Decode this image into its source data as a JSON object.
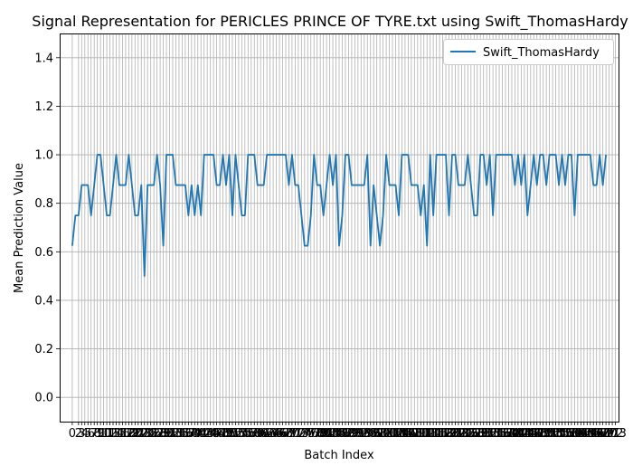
{
  "chart_data": {
    "type": "line",
    "title": "Signal Representation for PERICLES PRINCE OF TYRE.txt using Swift_ThomasHardy",
    "xlabel": "Batch Index",
    "ylabel": "Mean Prediction Value",
    "xlim": [
      -4,
      174
    ],
    "ylim": [
      -0.1,
      1.5
    ],
    "yticks": [
      0.0,
      0.2,
      0.4,
      0.6,
      0.8,
      1.0,
      1.2,
      1.4
    ],
    "grid": true,
    "legend": "top-right",
    "series": [
      {
        "name": "Swift_ThomasHardy",
        "color": "#1f77b4",
        "x": [
          0,
          1,
          2,
          3,
          4,
          5,
          6,
          7,
          8,
          9,
          10,
          11,
          12,
          13,
          14,
          15,
          16,
          17,
          18,
          19,
          20,
          21,
          22,
          23,
          24,
          25,
          26,
          27,
          28,
          29,
          30,
          31,
          32,
          33,
          34,
          35,
          36,
          37,
          38,
          39,
          40,
          41,
          42,
          43,
          44,
          45,
          46,
          47,
          48,
          49,
          50,
          51,
          52,
          53,
          54,
          55,
          56,
          57,
          58,
          59,
          60,
          61,
          62,
          63,
          64,
          65,
          66,
          67,
          68,
          69,
          70,
          71,
          72,
          73,
          74,
          75,
          76,
          77,
          78,
          79,
          80,
          81,
          82,
          83,
          84,
          85,
          86,
          87,
          88,
          89,
          90,
          91,
          92,
          93,
          94,
          95,
          96,
          97,
          98,
          99,
          100,
          101,
          102,
          103,
          104,
          105,
          106,
          107,
          108,
          109,
          110,
          111,
          112,
          113,
          114,
          115,
          116,
          117,
          118,
          119,
          120,
          121,
          122,
          123,
          124,
          125,
          126,
          127,
          128,
          129,
          130,
          131,
          132,
          133,
          134,
          135,
          136,
          137,
          138,
          139,
          140,
          141,
          142,
          143,
          144,
          145,
          146,
          147,
          148,
          149,
          150,
          151,
          152,
          153,
          154,
          155,
          156,
          157,
          158,
          159,
          160,
          161,
          162,
          163,
          164,
          165,
          166,
          167,
          168,
          169,
          170
        ],
        "values": [
          0.625,
          0.75,
          0.75,
          0.875,
          0.875,
          0.875,
          0.75,
          0.875,
          1.0,
          1.0,
          0.875,
          0.75,
          0.75,
          0.875,
          1.0,
          0.875,
          0.875,
          0.875,
          1.0,
          0.875,
          0.75,
          0.75,
          0.875,
          0.5,
          0.875,
          0.875,
          0.875,
          1.0,
          0.875,
          0.625,
          1.0,
          1.0,
          1.0,
          0.875,
          0.875,
          0.875,
          0.875,
          0.75,
          0.875,
          0.75,
          0.875,
          0.75,
          1.0,
          1.0,
          1.0,
          1.0,
          0.875,
          0.875,
          1.0,
          0.875,
          1.0,
          0.75,
          1.0,
          0.875,
          0.75,
          0.75,
          1.0,
          1.0,
          1.0,
          0.875,
          0.875,
          0.875,
          1.0,
          1.0,
          1.0,
          1.0,
          1.0,
          1.0,
          1.0,
          0.875,
          1.0,
          0.875,
          0.875,
          0.75,
          0.625,
          0.625,
          0.75,
          1.0,
          0.875,
          0.875,
          0.75,
          0.875,
          1.0,
          0.875,
          1.0,
          0.625,
          0.75,
          1.0,
          1.0,
          0.875,
          0.875,
          0.875,
          0.875,
          0.875,
          1.0,
          0.625,
          0.875,
          0.75,
          0.625,
          0.75,
          1.0,
          0.875,
          0.875,
          0.875,
          0.75,
          1.0,
          1.0,
          1.0,
          0.875,
          0.875,
          0.875,
          0.75,
          0.875,
          0.625,
          1.0,
          0.75,
          1.0,
          1.0,
          1.0,
          1.0,
          0.75,
          1.0,
          1.0,
          0.875,
          0.875,
          0.875,
          1.0,
          0.875,
          0.75,
          0.75,
          1.0,
          1.0,
          0.875,
          1.0,
          0.75,
          1.0,
          1.0,
          1.0,
          1.0,
          1.0,
          1.0,
          0.875,
          1.0,
          0.875,
          1.0,
          0.75,
          0.875,
          1.0,
          0.875,
          1.0,
          1.0,
          0.875,
          1.0,
          1.0,
          1.0,
          0.875,
          1.0,
          0.875,
          1.0,
          1.0,
          0.75,
          1.0,
          1.0,
          1.0,
          1.0,
          1.0,
          0.875,
          0.875,
          1.0,
          0.875,
          1.0
        ]
      }
    ],
    "xticks_shown": [
      0,
      2,
      3,
      4,
      5,
      6,
      7,
      8,
      9,
      10,
      11,
      12,
      13,
      14,
      15,
      16,
      17,
      18,
      19,
      20,
      21,
      22,
      23,
      24,
      25,
      26,
      27,
      28,
      29,
      30,
      31,
      32,
      33,
      34,
      35,
      36,
      37,
      38,
      39,
      40,
      41,
      42,
      43,
      44,
      45,
      46,
      47,
      48,
      49,
      50,
      51,
      52,
      53,
      54,
      55,
      56,
      57,
      58,
      59,
      60,
      61,
      62,
      63,
      64,
      65,
      66,
      67,
      68,
      69,
      70,
      71,
      72,
      73,
      74,
      75,
      76,
      77,
      78,
      79,
      80,
      81,
      82,
      83,
      84,
      85,
      86,
      87,
      88,
      89,
      90,
      91,
      92,
      93,
      94,
      95,
      96,
      97,
      98,
      99,
      100,
      101,
      102,
      103,
      104,
      105,
      106,
      107,
      108,
      109,
      110,
      111,
      112,
      113,
      114,
      115,
      116,
      117,
      118,
      119,
      120,
      121,
      122,
      123,
      124,
      125,
      126,
      127,
      128,
      129,
      130,
      131,
      132,
      133,
      134,
      135,
      136,
      137,
      138,
      139,
      140,
      141,
      142,
      143,
      144,
      145,
      146,
      147,
      148,
      149,
      150,
      151,
      152,
      153,
      154,
      155,
      156,
      157,
      158,
      159,
      160,
      161,
      162,
      163,
      164,
      165,
      166,
      167,
      168,
      169,
      170,
      171,
      172,
      173
    ]
  }
}
